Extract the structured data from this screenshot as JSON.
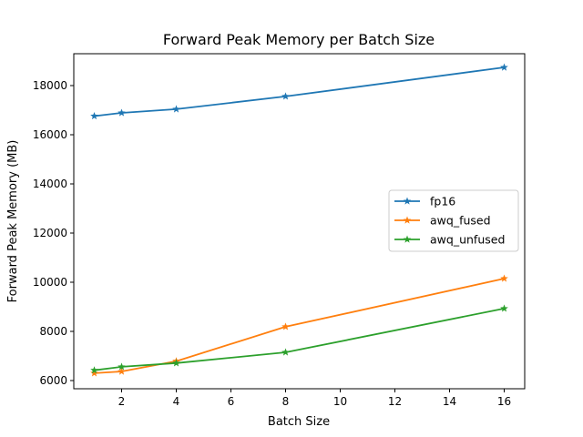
{
  "chart_data": {
    "type": "line",
    "title": "Forward Peak Memory per Batch Size",
    "xlabel": "Batch Size",
    "ylabel": "Forward Peak Memory (MB)",
    "xlim": [
      0.25,
      16.75
    ],
    "ylim": [
      5667,
      19296
    ],
    "xticks": [
      2,
      4,
      6,
      8,
      10,
      12,
      14,
      16
    ],
    "yticks": [
      6000,
      8000,
      10000,
      12000,
      14000,
      16000,
      18000
    ],
    "grid": false,
    "legend_position": "center-right",
    "marker": "star",
    "x": [
      1,
      2,
      4,
      8,
      16
    ],
    "series": [
      {
        "name": "fp16",
        "color": "#1f77b4",
        "values": [
          16760,
          16890,
          17040,
          17560,
          18740
        ]
      },
      {
        "name": "awq_fused",
        "color": "#ff7f0e",
        "values": [
          6300,
          6370,
          6790,
          8190,
          10150
        ]
      },
      {
        "name": "awq_unfused",
        "color": "#2ca02c",
        "values": [
          6420,
          6560,
          6710,
          7150,
          8930
        ]
      }
    ]
  }
}
